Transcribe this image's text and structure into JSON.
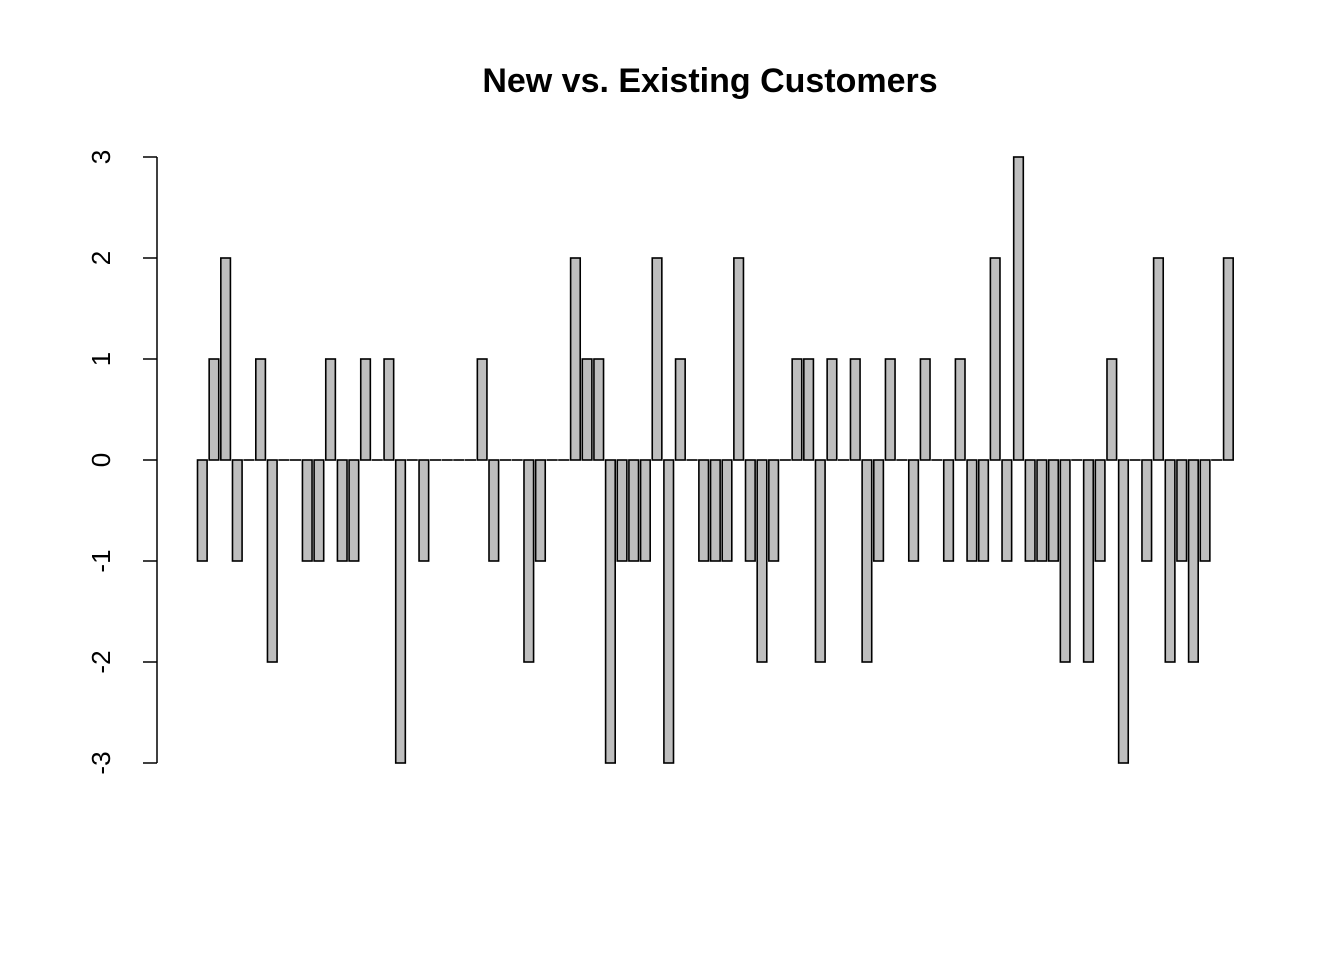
{
  "chart_data": {
    "type": "bar",
    "title": "New vs. Existing Customers",
    "xlabel": "",
    "ylabel": "",
    "ylim": [
      -3,
      3
    ],
    "yticks": [
      -3,
      -2,
      -1,
      0,
      1,
      2,
      3
    ],
    "bar_color": "#bebebe",
    "border_color": "#000000",
    "values": [
      -1,
      1,
      2,
      -1,
      0,
      1,
      -2,
      0,
      0,
      -1,
      -1,
      1,
      -1,
      -1,
      1,
      0,
      1,
      -3,
      0,
      -1,
      0,
      0,
      0,
      0,
      1,
      -1,
      0,
      0,
      -2,
      -1,
      0,
      0,
      2,
      1,
      1,
      -3,
      -1,
      -1,
      -1,
      2,
      -3,
      1,
      0,
      -1,
      -1,
      -1,
      2,
      -1,
      -2,
      -1,
      0,
      1,
      1,
      -2,
      1,
      0,
      1,
      -2,
      -1,
      1,
      0,
      -1,
      1,
      0,
      -1,
      1,
      -1,
      -1,
      2,
      -1,
      3,
      -1,
      -1,
      -1,
      -2,
      0,
      -2,
      -1,
      1,
      -3,
      0,
      -1,
      2,
      -2,
      -1,
      -2,
      -1,
      0,
      2
    ]
  }
}
